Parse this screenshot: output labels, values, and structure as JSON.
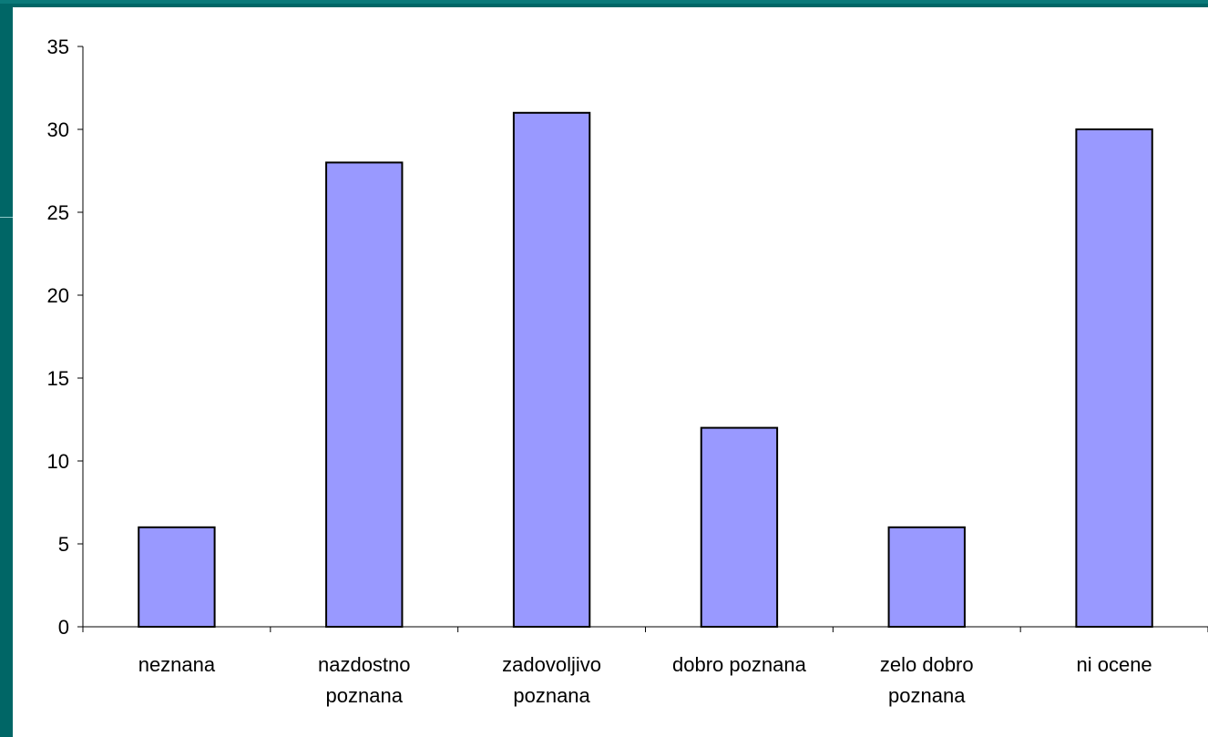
{
  "colors": {
    "frame": "#006666",
    "plot_background": "#ffffff",
    "bar_fill": "#9999ff",
    "bar_stroke": "#000000",
    "axis": "#000000"
  },
  "chart_data": {
    "type": "bar",
    "categories": [
      [
        "neznana"
      ],
      [
        "nazdostno",
        "poznana"
      ],
      [
        "zadovoljivo",
        "poznana"
      ],
      [
        "dobro poznana"
      ],
      [
        "zelo dobro",
        "poznana"
      ],
      [
        "ni ocene"
      ]
    ],
    "values": [
      6,
      28,
      31,
      12,
      6,
      30
    ],
    "yticks": [
      "0",
      "5",
      "10",
      "15",
      "20",
      "25",
      "30",
      "35"
    ],
    "ylim": [
      0,
      35
    ],
    "title": "",
    "xlabel": "",
    "ylabel": "",
    "grid": false,
    "legend": "none"
  }
}
